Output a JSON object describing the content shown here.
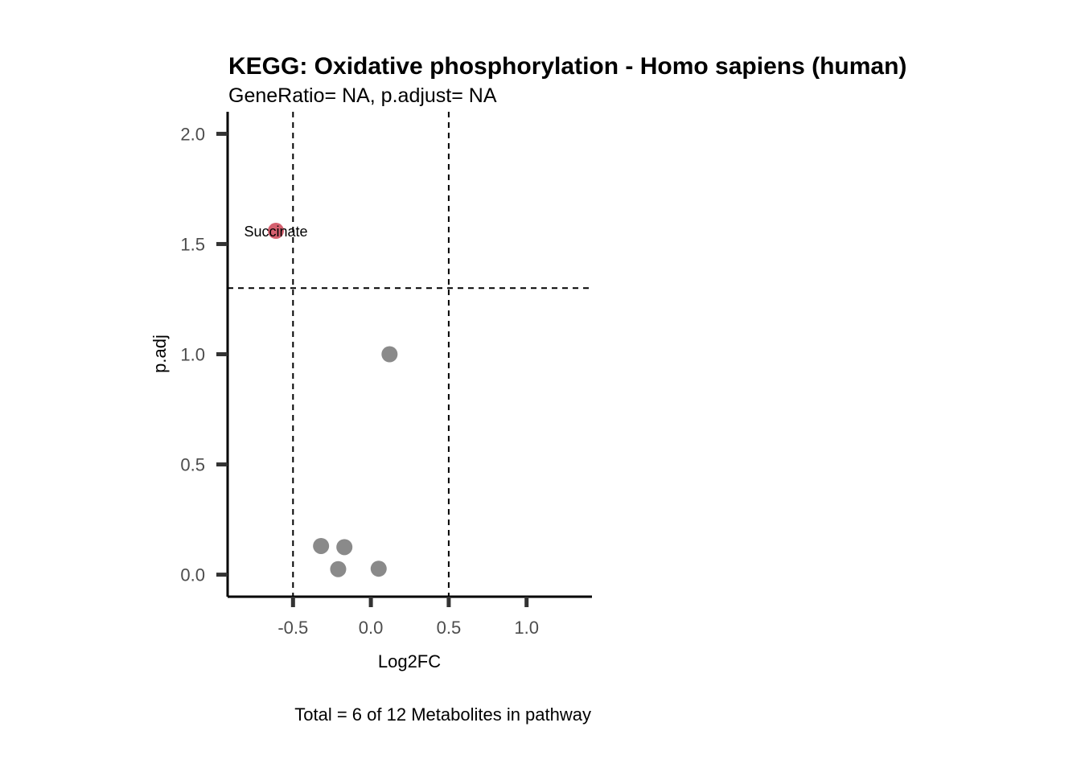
{
  "chart_data": {
    "type": "scatter",
    "title": "KEGG: Oxidative phosphorylation - Homo sapiens (human)",
    "subtitle": "GeneRatio= NA, p.adjust= NA",
    "xlabel": "Log2FC",
    "ylabel": "p.adj",
    "caption": "Total = 6 of 12 Metabolites in pathway",
    "xlim": [
      -0.92,
      1.42
    ],
    "ylim": [
      -0.1,
      2.1
    ],
    "x_ticks": [
      -0.5,
      0.0,
      0.5,
      1.0
    ],
    "x_tick_labels": [
      "-0.5",
      "0.0",
      "0.5",
      "1.0"
    ],
    "y_ticks": [
      0.0,
      0.5,
      1.0,
      1.5,
      2.0
    ],
    "y_tick_labels": [
      "0.0",
      "0.5",
      "1.0",
      "1.5",
      "2.0"
    ],
    "grid": false,
    "reference_lines": {
      "vertical": [
        -0.5,
        0.5
      ],
      "horizontal": [
        1.3
      ]
    },
    "colors": {
      "significant": "#d5606f",
      "not_significant": "#8a8a8a"
    },
    "points": [
      {
        "x": -0.61,
        "y": 1.56,
        "significant": true,
        "label": "Succinate"
      },
      {
        "x": 0.12,
        "y": 1.0,
        "significant": false,
        "label": ""
      },
      {
        "x": -0.32,
        "y": 0.13,
        "significant": false,
        "label": ""
      },
      {
        "x": -0.17,
        "y": 0.125,
        "significant": false,
        "label": ""
      },
      {
        "x": -0.21,
        "y": 0.025,
        "significant": false,
        "label": ""
      },
      {
        "x": 0.05,
        "y": 0.027,
        "significant": false,
        "label": ""
      }
    ]
  }
}
